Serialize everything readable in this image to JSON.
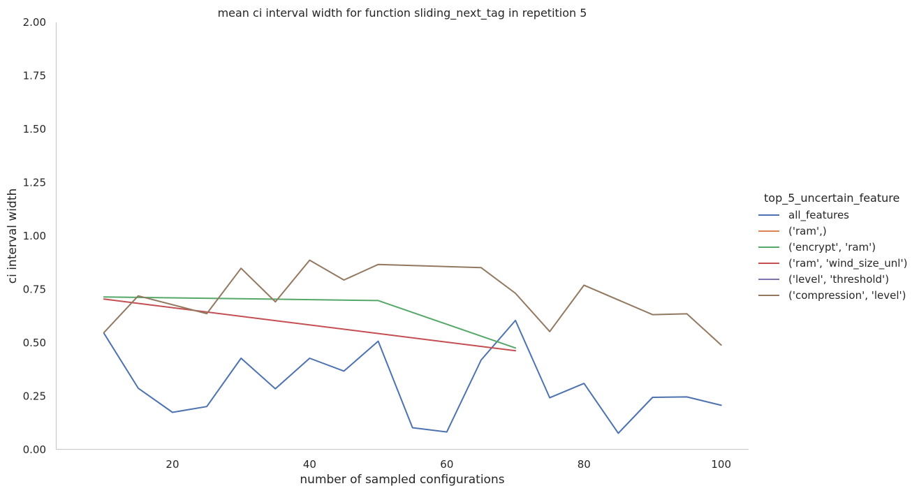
{
  "chart_data": {
    "type": "line",
    "title": "mean ci interval width for function sliding_next_tag in repetition 5",
    "xlabel": "number of sampled configurations",
    "ylabel": "ci interval width",
    "xlim": [
      3,
      104
    ],
    "ylim": [
      0,
      2
    ],
    "xticks": [
      20,
      40,
      60,
      80,
      100
    ],
    "yticks": [
      "0.00",
      "0.25",
      "0.50",
      "0.75",
      "1.00",
      "1.25",
      "1.50",
      "1.75",
      "2.00"
    ],
    "grid": false,
    "legend": {
      "title": "top_5_uncertain_feature",
      "placement": "right"
    },
    "series": [
      {
        "name": "all_features",
        "color": "#4c72b0",
        "x": [
          10,
          15,
          20,
          25,
          30,
          35,
          40,
          45,
          50,
          55,
          60,
          65,
          70,
          75,
          80,
          85,
          90,
          95,
          100
        ],
        "y": [
          0.545,
          0.288,
          0.175,
          0.202,
          0.428,
          0.285,
          0.428,
          0.368,
          0.508,
          0.103,
          0.083,
          0.42,
          0.605,
          0.243,
          0.31,
          0.077,
          0.245,
          0.247,
          0.208
        ]
      },
      {
        "name": "('ram',)",
        "color": "#dd8452",
        "x": [],
        "y": []
      },
      {
        "name": "('encrypt', 'ram')",
        "color": "#55a868",
        "x": [
          10,
          50,
          70
        ],
        "y": [
          0.715,
          0.698,
          0.476
        ]
      },
      {
        "name": "('ram', 'wind_size_unl')",
        "color": "#c44e52",
        "x": [
          10,
          70
        ],
        "y": [
          0.705,
          0.463
        ]
      },
      {
        "name": "('level', 'threshold')",
        "color": "#8172b3",
        "x": [],
        "y": []
      },
      {
        "name": "('compression', 'level')",
        "color": "#937860",
        "x": [
          10,
          15,
          25,
          30,
          35,
          40,
          45,
          50,
          65,
          70,
          75,
          80,
          90,
          95,
          100
        ],
        "y": [
          0.548,
          0.72,
          0.637,
          0.849,
          0.692,
          0.887,
          0.794,
          0.867,
          0.852,
          0.732,
          0.553,
          0.77,
          0.632,
          0.636,
          0.49
        ]
      }
    ]
  }
}
